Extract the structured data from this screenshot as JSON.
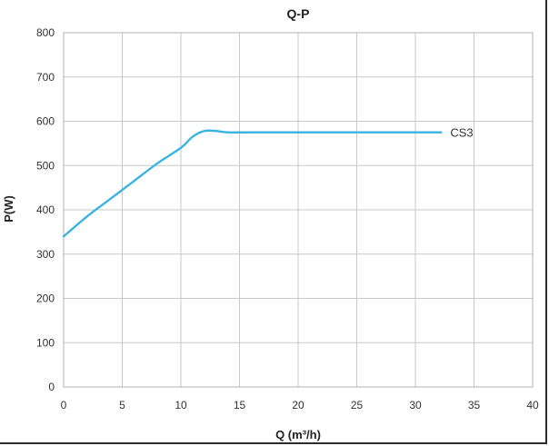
{
  "chart_data": {
    "type": "line",
    "title": "Q-P",
    "xlabel": "Q (m³/h)",
    "ylabel": "P(W)",
    "xlim": [
      0,
      40
    ],
    "ylim": [
      0,
      800
    ],
    "x_ticks": [
      0,
      5,
      10,
      15,
      20,
      25,
      30,
      35,
      40
    ],
    "y_ticks": [
      0,
      100,
      200,
      300,
      400,
      500,
      600,
      700,
      800
    ],
    "grid": true,
    "legend": "none",
    "series": [
      {
        "name": "CS3",
        "color": "#3bb3e0",
        "x": [
          0,
          2,
          4,
          6,
          8,
          10,
          11,
          12,
          13,
          14,
          16,
          20,
          25,
          30,
          32.2
        ],
        "y": [
          340,
          385,
          425,
          465,
          505,
          540,
          565,
          578,
          578,
          575,
          575,
          575,
          575,
          575,
          575
        ]
      }
    ]
  }
}
